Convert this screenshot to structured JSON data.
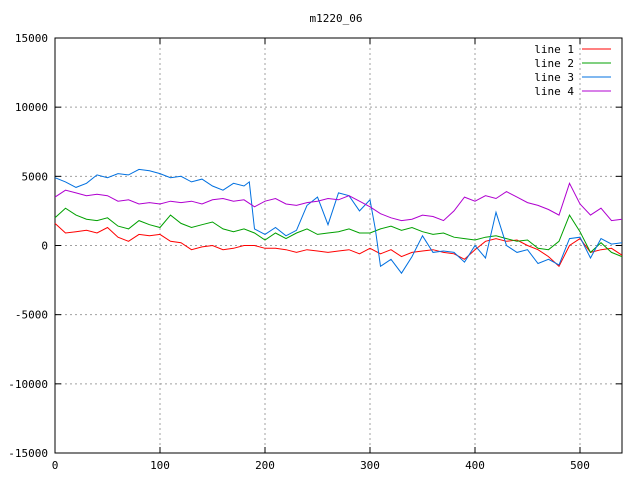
{
  "chart_data": {
    "type": "line",
    "title": "m1220_06",
    "xlabel": "",
    "ylabel": "",
    "xlim": [
      0,
      540
    ],
    "ylim": [
      -15000,
      15000
    ],
    "xticks": [
      0,
      100,
      200,
      300,
      400,
      500
    ],
    "yticks": [
      -15000,
      -10000,
      -5000,
      0,
      5000,
      10000,
      15000
    ],
    "grid": true,
    "legend_position": "top-right",
    "series": [
      {
        "name": "line 1",
        "color": "#ff0000",
        "x": [
          0,
          10,
          20,
          30,
          40,
          50,
          60,
          70,
          80,
          90,
          100,
          110,
          120,
          130,
          140,
          150,
          160,
          170,
          180,
          190,
          200,
          210,
          220,
          230,
          240,
          250,
          260,
          270,
          280,
          290,
          300,
          310,
          320,
          330,
          340,
          350,
          360,
          370,
          380,
          390,
          400,
          410,
          420,
          430,
          440,
          450,
          460,
          470,
          480,
          490,
          500,
          510,
          520,
          530,
          540
        ],
        "y": [
          1600,
          900,
          1000,
          1100,
          900,
          1300,
          600,
          300,
          800,
          700,
          800,
          300,
          200,
          -300,
          -100,
          0,
          -300,
          -200,
          0,
          0,
          -200,
          -200,
          -300,
          -500,
          -300,
          -400,
          -500,
          -400,
          -300,
          -600,
          -200,
          -600,
          -300,
          -800,
          -500,
          -400,
          -300,
          -500,
          -600,
          -1000,
          -300,
          300,
          500,
          300,
          400,
          0,
          -300,
          -800,
          -1500,
          0,
          500,
          -500,
          -300,
          -200,
          -700
        ]
      },
      {
        "name": "line 2",
        "color": "#00a000",
        "x": [
          0,
          10,
          20,
          30,
          40,
          50,
          60,
          70,
          80,
          90,
          100,
          110,
          120,
          130,
          140,
          150,
          160,
          170,
          180,
          190,
          200,
          210,
          220,
          230,
          240,
          250,
          260,
          270,
          280,
          290,
          300,
          310,
          320,
          330,
          340,
          350,
          360,
          370,
          380,
          390,
          400,
          410,
          420,
          430,
          440,
          450,
          460,
          470,
          480,
          490,
          500,
          510,
          520,
          530,
          540
        ],
        "y": [
          2000,
          2700,
          2200,
          1900,
          1800,
          2000,
          1400,
          1200,
          1800,
          1500,
          1300,
          2200,
          1600,
          1300,
          1500,
          1700,
          1200,
          1000,
          1200,
          900,
          400,
          900,
          500,
          900,
          1200,
          800,
          900,
          1000,
          1200,
          900,
          900,
          1200,
          1400,
          1100,
          1300,
          1000,
          800,
          900,
          600,
          500,
          400,
          600,
          700,
          500,
          300,
          400,
          -200,
          -300,
          300,
          2200,
          1000,
          -500,
          200,
          -500,
          -800
        ]
      },
      {
        "name": "line 3",
        "color": "#0070e0",
        "x": [
          0,
          10,
          20,
          30,
          40,
          50,
          60,
          70,
          80,
          90,
          100,
          110,
          120,
          130,
          140,
          150,
          160,
          170,
          180,
          185,
          190,
          200,
          210,
          220,
          230,
          240,
          250,
          260,
          270,
          280,
          290,
          300,
          305,
          310,
          320,
          330,
          340,
          350,
          360,
          370,
          380,
          390,
          400,
          410,
          420,
          430,
          440,
          450,
          460,
          470,
          480,
          490,
          500,
          510,
          520,
          530,
          540
        ],
        "y": [
          4900,
          4600,
          4200,
          4500,
          5100,
          4900,
          5200,
          5100,
          5500,
          5400,
          5200,
          4900,
          5000,
          4600,
          4800,
          4300,
          4000,
          4500,
          4300,
          4600,
          1200,
          800,
          1300,
          700,
          1100,
          2900,
          3500,
          1500,
          3800,
          3600,
          2500,
          3300,
          1200,
          -1500,
          -1000,
          -2000,
          -800,
          700,
          -500,
          -400,
          -500,
          -1200,
          0,
          -900,
          2400,
          0,
          -500,
          -300,
          -1300,
          -1000,
          -1400,
          500,
          600,
          -900,
          500,
          100,
          200
        ]
      },
      {
        "name": "line 4",
        "color": "#b000d0",
        "x": [
          0,
          10,
          20,
          30,
          40,
          50,
          60,
          70,
          80,
          90,
          100,
          110,
          120,
          130,
          140,
          150,
          160,
          170,
          180,
          190,
          200,
          210,
          220,
          230,
          240,
          250,
          260,
          270,
          280,
          290,
          300,
          310,
          320,
          330,
          340,
          350,
          360,
          370,
          380,
          390,
          400,
          410,
          420,
          430,
          440,
          450,
          460,
          470,
          480,
          490,
          500,
          510,
          520,
          530,
          540
        ],
        "y": [
          3500,
          4000,
          3800,
          3600,
          3700,
          3600,
          3200,
          3300,
          3000,
          3100,
          3000,
          3200,
          3100,
          3200,
          3000,
          3300,
          3400,
          3200,
          3300,
          2800,
          3200,
          3400,
          3000,
          2900,
          3100,
          3200,
          3400,
          3300,
          3600,
          3200,
          2800,
          2300,
          2000,
          1800,
          1900,
          2200,
          2100,
          1800,
          2500,
          3500,
          3200,
          3600,
          3400,
          3900,
          3500,
          3100,
          2900,
          2600,
          2200,
          4500,
          3000,
          2200,
          2700,
          1800,
          1900
        ]
      }
    ]
  }
}
